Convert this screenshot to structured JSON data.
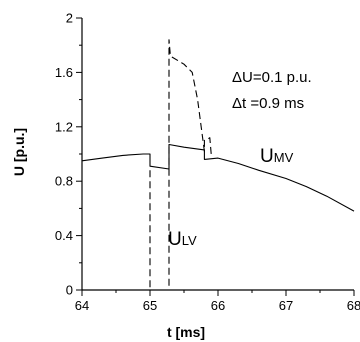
{
  "chart_data": {
    "type": "line",
    "xlabel": "t [ms]",
    "ylabel": "U [p.u.]",
    "xlim": [
      64,
      68
    ],
    "ylim": [
      0,
      2
    ],
    "x_ticks": [
      64,
      65,
      66,
      67,
      68
    ],
    "x_tick_labels": [
      "64",
      "65",
      "66",
      "67",
      "68"
    ],
    "y_ticks": [
      0,
      0.4,
      0.8,
      1.2,
      1.6,
      2
    ],
    "y_tick_labels": [
      "0",
      "0.4",
      "0.8",
      "1.2",
      "1.6",
      "2"
    ],
    "grid": false,
    "annotations": [
      "ΔU=0.1 p.u.",
      "Δt =0.9 ms"
    ],
    "series": [
      {
        "name": "U",
        "name_sub": "MV",
        "style": "solid",
        "x": [
          64,
          64.3,
          64.6,
          64.9,
          65,
          65,
          65.28,
          65.28,
          65.5,
          65.8,
          65.8,
          66,
          66.3,
          66.6,
          67,
          67.3,
          67.6,
          68
        ],
        "y": [
          0.95,
          0.97,
          0.99,
          1.0,
          1.0,
          0.91,
          0.89,
          1.07,
          1.05,
          1.03,
          0.96,
          0.97,
          0.93,
          0.88,
          0.82,
          0.76,
          0.69,
          0.58
        ]
      },
      {
        "name": "U",
        "name_sub": "LV",
        "style": "dashed",
        "x": [
          65,
          65,
          65.28,
          65.28,
          65.3,
          65.5,
          65.62,
          65.7,
          65.8,
          65.8,
          65.82,
          65.88,
          65.9
        ],
        "y": [
          0.88,
          0,
          0,
          1.84,
          1.72,
          1.66,
          1.6,
          1.4,
          1.02,
          1.1,
          1.1,
          1.12,
          1.0
        ]
      }
    ]
  }
}
